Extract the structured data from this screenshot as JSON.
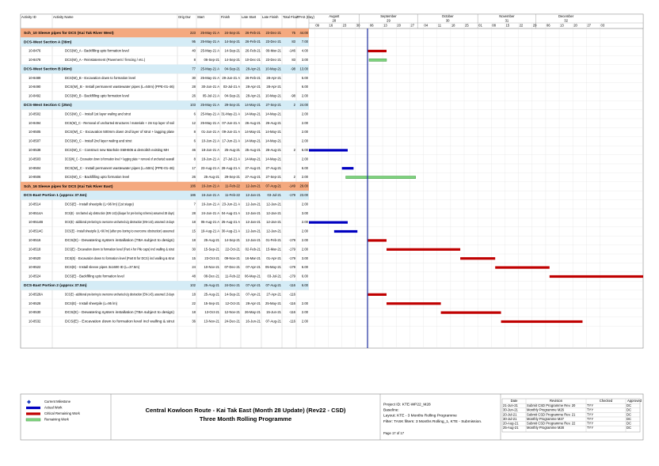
{
  "header": {
    "columns": [
      "Activity ID",
      "Activity Name",
      "Orig Dur",
      "Start",
      "Finish",
      "Late Start",
      "Late Finish",
      "Total Float",
      "TFAS (Day)"
    ],
    "months": [
      "August",
      "September",
      "October",
      "November",
      "December"
    ],
    "month_numbers": [
      "28",
      "29",
      "30",
      "31",
      "32"
    ],
    "weeks": [
      "26",
      "02",
      "09",
      "16",
      "23",
      "30",
      "06",
      "13",
      "20",
      "27",
      "04",
      "11",
      "18",
      "25",
      "01",
      "08",
      "15",
      "22",
      "29",
      "06",
      "13",
      "20",
      "27",
      "03"
    ]
  },
  "rows": [
    {
      "name": "Sch_10 Sleeve pipes for DCS (Kai Tak River West)",
      "color": "#f4a97f",
      "cells": [
        223,
        "25-May-21 A",
        "24-Sep-21",
        "26-Feb-21",
        "23-Dec-21",
        75,
        "44.00"
      ]
    },
    {
      "name": "DCS-West Section A (39m)",
      "color": "#d5ecf6",
      "cells": [
        95,
        "25-May-21 A",
        "14-Sep-21",
        "26-Feb-21",
        "23-Dec-21",
        83,
        "7.00"
      ]
    },
    {
      "id": "10-8476",
      "name": "DCS(W)_A - Backfilling upto formation level",
      "bar_color": "#c00000",
      "cells": [
        40,
        "25-May-21 A",
        "14-Sep-21",
        "26-Feb-21",
        "09-Mar-21",
        -146,
        "4.00"
      ]
    },
    {
      "id": "10-8478",
      "name": "DCS(W)_A - Reinstatement (Pavement / fencing / etc.)",
      "bar_color": "#7fd37f",
      "cells": [
        8,
        "06-Sep-21",
        "14-Sep-21",
        "10-Dec-21",
        "23-Dec-21",
        83,
        "3.00"
      ]
    },
    {
      "name": "DCS-West Section B (49m)",
      "color": "#d5ecf6",
      "cells": [
        77,
        "25-May-21 A",
        "04-Sep-21",
        "28-Apr-21",
        "10-May-21",
        -98,
        "13.00"
      ]
    },
    {
      "id": "10-8489",
      "name": "DCS(W)_B - Excavation down to formation level",
      "cells": [
        30,
        "25-May-21 A",
        "29-Jun-21 A",
        "26-Feb-21",
        "28-Apr-21",
        null,
        "5.00"
      ]
    },
    {
      "id": "10-8490",
      "name": "DCS(W)_B - Install permanent wastewater pipes (L=50m) (PPE-01-46)",
      "cells": [
        28,
        "30-Jun-21 A",
        "03-Jul-21 A",
        "28-Apr-21",
        "28-Apr-21",
        null,
        "6.00"
      ]
    },
    {
      "id": "10-8492",
      "name": "DCS(W)_B - Backfilling upto formation level",
      "bar_color": "#c00000",
      "cells": [
        26,
        "05-Jul-21 A",
        "04-Sep-21",
        "28-Apr-21",
        "10-May-21",
        -98,
        "2.00"
      ]
    },
    {
      "name": "DCS-West Section C (25m)",
      "color": "#d5ecf6",
      "cells": [
        103,
        "25-May-21 A",
        "29-Sep-21",
        "14-May-21",
        "27-Sep-21",
        2,
        "24.00"
      ]
    },
    {
      "id": "10-8502",
      "name": "DCS(W)_C - Install 1st layer waling and strut",
      "cells": [
        6,
        "25-May-21 A",
        "31-May-21 A",
        "14-May-21",
        "14-May-21",
        null,
        "2.00"
      ]
    },
    {
      "id": "10-8494",
      "name": "DCS(W)_C - Removal of uncharted structures / materials + 2m top layer of soil",
      "cells": [
        12,
        "25-May-21 A",
        "07-Jun-21 A",
        "26-Aug-21",
        "26-Aug-21",
        null,
        "2.00"
      ]
    },
    {
      "id": "10-8505",
      "name": "DCS(W)_C - Excavation 500mm down 2nd layer of strut + lagging plate",
      "cells": [
        8,
        "01-Jun-21 A",
        "09-Jun-21 A",
        "14-May-21",
        "14-May-21",
        null,
        "2.00"
      ]
    },
    {
      "id": "10-8507",
      "name": "DCS(W)_C - Install 2nd layer waling and strut",
      "cells": [
        6,
        "10-Jun-21 A",
        "17-Jun-21 A",
        "14-May-21",
        "14-May-21",
        null,
        "2.00"
      ]
    },
    {
      "id": "10-8538",
      "name": "DCS(W)_C - Construct new Manhole SMH606 & demolish existing MH",
      "bar_color": "#0000c0",
      "cells": [
        46,
        "18-Jun-21 A",
        "25-Aug-21",
        "25-Aug-21",
        "26-Aug-21",
        2,
        "6.00"
      ]
    },
    {
      "id": "10-8503",
      "name": "DCS(W)_C - Excavation down to formation level + lagging plate + removal of uncharted seawall",
      "bar_color": "#0000c0",
      "cells": [
        8,
        "18-Jun-21 A",
        "27-Jul-21 A",
        "14-May-21",
        "14-May-21",
        null,
        "2.00"
      ]
    },
    {
      "id": "10-8504",
      "name": "DCS(W)_C - Install permanent wastewater pipes (L=50m) (PPE-01-46)",
      "bar_color": "#0000c0",
      "cells": [
        17,
        "23-Aug-21 A",
        "28-Aug-21 A",
        "27-Aug-21",
        "27-Aug-21",
        null,
        "6.00"
      ]
    },
    {
      "id": "10-8506",
      "name": "DCS(W)_C - Backfilling upto formation level",
      "bar_color": "#7fd37f",
      "cells": [
        26,
        "25-Aug-21",
        "29-Sep-21",
        "27-Aug-21",
        "27-Sep-21",
        2,
        "2.00"
      ]
    },
    {
      "name": "Sch_16 Sleeve pipes for DCS (Kai Tak River East)",
      "color": "#f4a97f",
      "cells": [
        186,
        "16-Jun-21 A",
        "11-Feb-22",
        "12-Jan-21",
        "07-Aug-21",
        -149,
        "29.00"
      ]
    },
    {
      "name": "DCS-East Portion 1 (approx 37.5m)",
      "color": "#d5ecf6",
      "cells": [
        186,
        "16-Jun-21 A",
        "11-Feb-22",
        "12-Jan-21",
        "03-Jul-21",
        -179,
        "23.00"
      ]
    },
    {
      "id": "10-8514",
      "name": "DCS(E) - Install sheetpile (L=96 lm) (1st stage)",
      "cells": [
        7,
        "16-Jun-21 A",
        "23-Jun-21 A",
        "12-Jan-21",
        "12-Jan-21",
        null,
        "2.00"
      ]
    },
    {
      "id": "10-8514A",
      "name": "DCS(E) - Uncharted u/g obstruction (EW-143) (diaque for pre-boring scheme) assumed 28 days)",
      "bar_color": "#0000c0",
      "cells": [
        28,
        "24-Jun-21 A",
        "04-Aug-21 A",
        "12-Jan-21",
        "12-Jan-21",
        null,
        "3.00"
      ]
    },
    {
      "id": "10-8514B",
      "name": "DCS(E) - additional pre-boring to overcome uncharted u/g obstruction (EW-143), assumed 16 days",
      "bar_color": "#0000c0",
      "cells": [
        18,
        "05-Aug-21 A",
        "25-Aug-21 A",
        "12-Jan-21",
        "12-Jan-21",
        null,
        "2.00"
      ]
    },
    {
      "id": "10-8514C",
      "name": "DCS(E) - Install sheetpile (L=96 lm) (after pre-boring to overcome obstruction) assumed",
      "bar_color": "#0000c0",
      "cells": [
        15,
        "19-Aug-21 A",
        "30-Aug-21 A",
        "12-Jan-21",
        "12-Jan-21",
        null,
        "2.00"
      ]
    },
    {
      "id": "10-8516",
      "name": "DCS(E) - Dewatering system installation (TBA subject to design)",
      "bar_color": "#c00000",
      "cells": [
        18,
        "25-Aug-21",
        "14-Sep-21",
        "12-Jan-21",
        "01-Feb-21",
        -179,
        "2.00"
      ]
    },
    {
      "id": "10-8518",
      "name": "DCS(E) - Excavation down to formation level (Part A for Pile caps) incl walling & strut",
      "bar_color": "#c00000",
      "cells": [
        30,
        "15-Sep-21",
        "22-Oct-21",
        "02-Feb-21",
        "15-Mar-21",
        -179,
        "2.00"
      ]
    },
    {
      "id": "10-8520",
      "name": "DCS(E) - Excavation down to formation level (Part B for DCS) incl walling & strut",
      "bar_color": "#c00000",
      "cells": [
        15,
        "23-Oct-21",
        "09-Nov-21",
        "16-Mar-21",
        "01-Apr-21",
        -179,
        "3.00"
      ]
    },
    {
      "id": "10-8522",
      "name": "DCS(E) - Install sleeve pipes 3x1600 ID (L=37.5m)",
      "bar_color": "#c00000",
      "cells": [
        24,
        "10-Nov-21",
        "07-Dec-21",
        "07-Apr-21",
        "05-May-21",
        -179,
        "6.00"
      ]
    },
    {
      "id": "10-8524",
      "name": "DCS(E) - Backfilling upto formation level",
      "bar_color": "#c00000",
      "cells": [
        48,
        "08-Dec-21",
        "11-Feb-22",
        "06-May-21",
        "03-Jul-21",
        -179,
        "6.00"
      ]
    },
    {
      "name": "DCS-East Portion 2 (approx 37.5m)",
      "color": "#d5ecf6",
      "cells": [
        102,
        "25-Aug-21",
        "24-Dec-21",
        "07-Apr-21",
        "07-Aug-21",
        -116,
        "6.00"
      ]
    },
    {
      "id": "10-8528A",
      "name": "DCS(E) - additional pre-boring to overcome uncharted u/g obstruction (EW-143), assumed 16 days",
      "bar_color": "#c00000",
      "cells": [
        18,
        "25-Aug-21",
        "14-Sep-21",
        "07-Apr-21",
        "27-Apr-21",
        -116,
        null
      ]
    },
    {
      "id": "10-8528",
      "name": "DCS(E) - Install sheetpile (L=95 lm)",
      "bar_color": "#c00000",
      "cells": [
        22,
        "15-Sep-21",
        "12-Oct-21",
        "28-Apr-21",
        "25-May-21",
        -116,
        "2.00"
      ]
    },
    {
      "id": "10-8530",
      "name": "DCS(E) - Dewatering system installation (TBA subject to design)",
      "bar_color": "#c00000",
      "cells": [
        18,
        "13-Oct-21",
        "12-Nov-21",
        "26-May-21",
        "15-Jun-21",
        -116,
        "2.00"
      ]
    },
    {
      "id": "10-8532",
      "name": "DCS(E) - Excavation down to formation level incl walling & strut",
      "bar_color": "#c00000",
      "cells": [
        36,
        "13-Nov-21",
        "24-Dec-21",
        "16-Jun-21",
        "07-Aug-21",
        -116,
        "2.00"
      ]
    }
  ],
  "legend": [
    {
      "label": "Current Milestone",
      "color": "#1f3fbf"
    },
    {
      "label": "Actual Work",
      "color": "#0000c0"
    },
    {
      "label": "Critical Remaining Work",
      "color": "#c00000"
    },
    {
      "label": "Remaining Work",
      "color": "#7fd37f"
    }
  ],
  "footer": {
    "title": "Central Kowloon Route - Kai Tak East (Month 28 Update) (Rev22 - CSD)",
    "subtitle": "Three Month Rolling Programme",
    "info": [
      "Project ID: KTE-WP22_M28",
      "Baseline:",
      "Layout: KTE - 3 Months Rolling Programme",
      "Filter: TASK filters: 3 Months Rolling_1, KTE - Submission."
    ],
    "page": "Page 17 of 17"
  },
  "revisions": {
    "columns": [
      "Date",
      "Revision",
      "Checked",
      "Approved"
    ],
    "rows": [
      [
        "21-Jun-21",
        "Submit CSD Programme Rev. 20",
        "TYY",
        "DC"
      ],
      [
        "30-Jun-21",
        "Monthly Programme M26",
        "TYY",
        "DC"
      ],
      [
        "20-Jul-21",
        "Submit CSD Programme Rev. 21",
        "TYY",
        "DC"
      ],
      [
        "30-Jul-21",
        "Monthly Programme M27",
        "TYY",
        "DC"
      ],
      [
        "20-Aug-21",
        "Submit CSD Programme Rev. 22",
        "TYY",
        "DC"
      ],
      [
        "25-Aug-21",
        "Monthly Programme M28",
        "TYY",
        "DC"
      ]
    ]
  }
}
